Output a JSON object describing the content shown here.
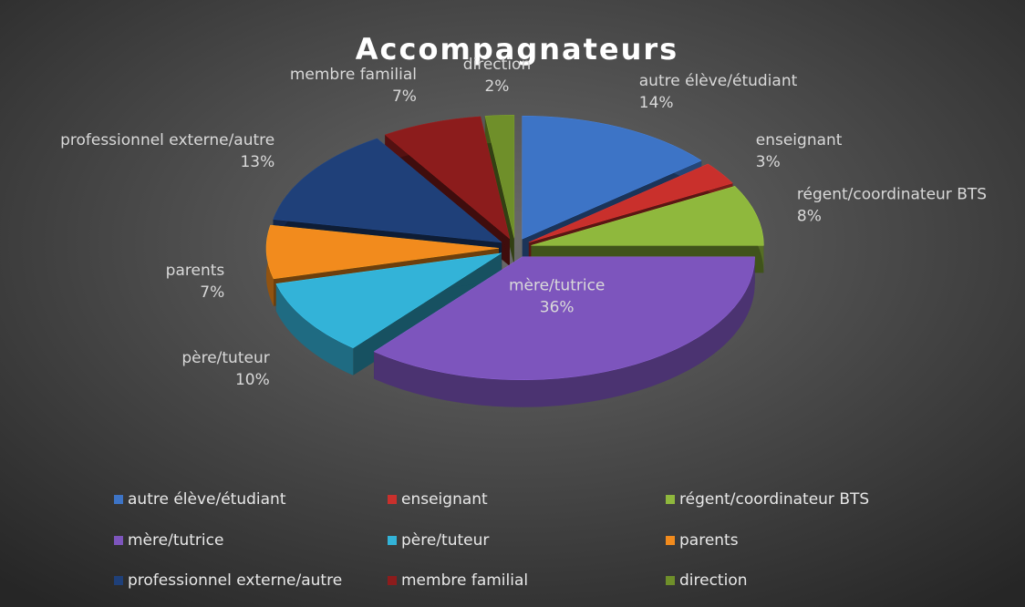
{
  "chart_data": {
    "type": "pie",
    "title": "Accompagnateurs",
    "categories": [
      "autre élève/étudiant",
      "enseignant",
      "régent/coordinateur BTS",
      "mère/tutrice",
      "père/tuteur",
      "parents",
      "professionnel externe/autre",
      "membre familial",
      "direction"
    ],
    "values": [
      14,
      3,
      8,
      36,
      10,
      7,
      13,
      7,
      2
    ],
    "value_labels": [
      "14%",
      "3%",
      "8%",
      "36%",
      "10%",
      "7%",
      "13%",
      "7%",
      "2%"
    ],
    "colors": [
      "#3d74c6",
      "#c9302c",
      "#8fb83d",
      "#7d55bd",
      "#33b3d8",
      "#f28b1d",
      "#1f4079",
      "#8c1c1c",
      "#6f8f2a"
    ],
    "explode": true,
    "3d": true,
    "legend": "bottom"
  }
}
